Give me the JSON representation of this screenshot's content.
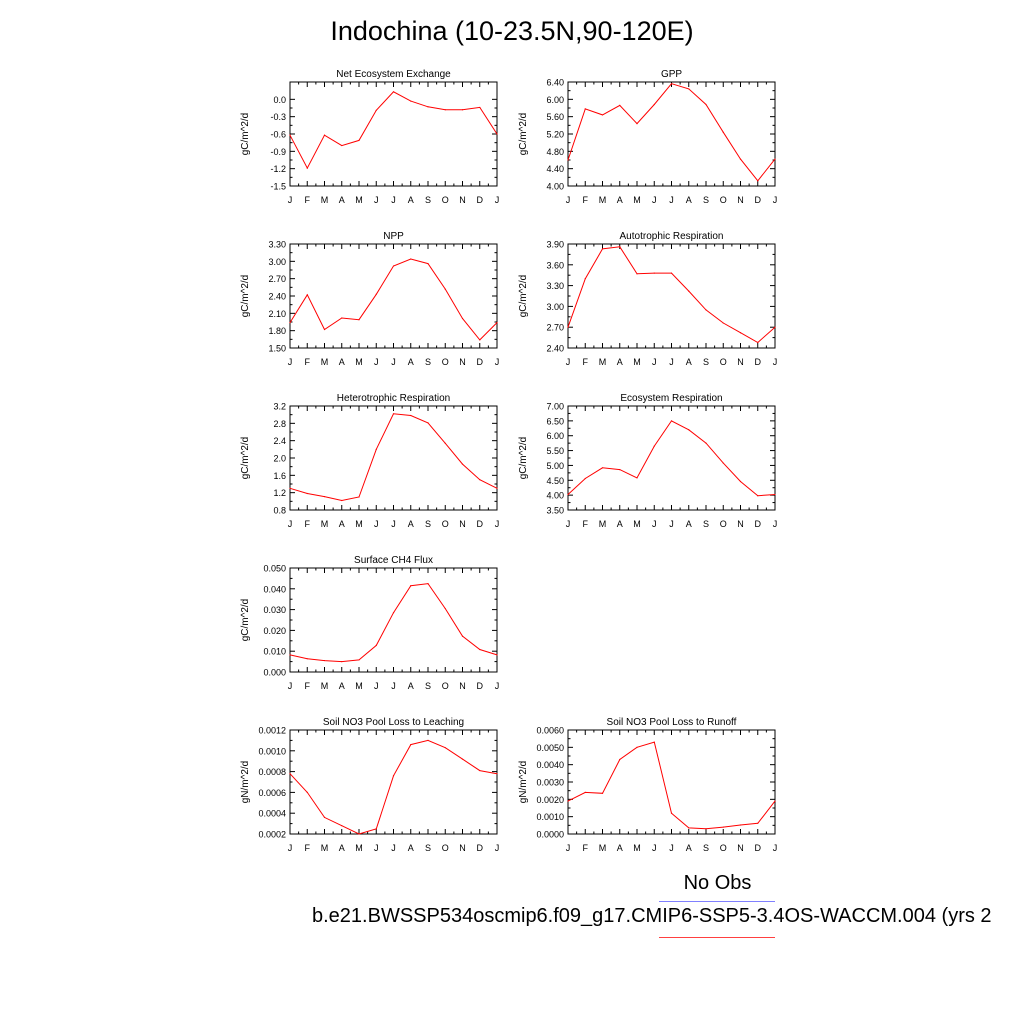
{
  "figure": {
    "title": "Indochina (10-23.5N,90-120E)",
    "legend": [
      {
        "label": "No Obs",
        "color": "#8080ff"
      },
      {
        "label": "b.e21.BWSSP534oscmip6.f09_g17.CMIP6-SSP5-3.4OS-WACCM.004 (yrs 2",
        "color": "#ff4040"
      }
    ],
    "line_color": "#ff0000"
  },
  "chart_data": [
    {
      "type": "line",
      "title": "Net Ecosystem Exchange",
      "ylabel": "gC/m^2/d",
      "ylim": [
        -1.5,
        0.3
      ],
      "yticks": [
        -1.5,
        -1.2,
        -0.9,
        -0.6,
        -0.3,
        0.0
      ],
      "ytick_labels": [
        "-1.5",
        "-1.2",
        "-0.9",
        "-0.6",
        "-0.3",
        "0.0"
      ],
      "ymax_label": "",
      "categories": [
        "J",
        "F",
        "M",
        "A",
        "M",
        "J",
        "J",
        "A",
        "S",
        "O",
        "N",
        "D",
        "J"
      ],
      "values": [
        -0.62,
        -1.19,
        -0.62,
        -0.8,
        -0.71,
        -0.19,
        0.13,
        -0.03,
        -0.13,
        -0.18,
        -0.18,
        -0.14,
        -0.6
      ]
    },
    {
      "type": "line",
      "title": "GPP",
      "ylabel": "gC/m^2/d",
      "ylim": [
        4.0,
        6.4
      ],
      "yticks": [
        4.0,
        4.4,
        4.8,
        5.2,
        5.6,
        6.0,
        6.4
      ],
      "ytick_labels": [
        "4.00",
        "4.40",
        "4.80",
        "5.20",
        "5.60",
        "6.00",
        "6.40"
      ],
      "ymax_label": "",
      "categories": [
        "J",
        "F",
        "M",
        "A",
        "M",
        "J",
        "J",
        "A",
        "S",
        "O",
        "N",
        "D",
        "J"
      ],
      "values": [
        4.6,
        5.78,
        5.64,
        5.86,
        5.44,
        5.88,
        6.36,
        6.24,
        5.88,
        5.24,
        4.62,
        4.12,
        4.62
      ]
    },
    {
      "type": "line",
      "title": "NPP",
      "ylabel": "gC/m^2/d",
      "ylim": [
        1.5,
        3.3
      ],
      "yticks": [
        1.5,
        1.8,
        2.1,
        2.4,
        2.7,
        3.0,
        3.3
      ],
      "ytick_labels": [
        "1.50",
        "1.80",
        "2.10",
        "2.40",
        "2.70",
        "3.00",
        "3.30"
      ],
      "ymax_label": "",
      "categories": [
        "J",
        "F",
        "M",
        "A",
        "M",
        "J",
        "J",
        "A",
        "S",
        "O",
        "N",
        "D",
        "J"
      ],
      "values": [
        1.94,
        2.42,
        1.82,
        2.02,
        1.99,
        2.43,
        2.92,
        3.04,
        2.96,
        2.52,
        2.01,
        1.64,
        1.94
      ]
    },
    {
      "type": "line",
      "title": "Autotrophic Respiration",
      "ylabel": "gC/m^2/d",
      "ylim": [
        2.4,
        3.9
      ],
      "yticks": [
        2.4,
        2.7,
        3.0,
        3.3,
        3.6,
        3.9
      ],
      "ytick_labels": [
        "2.40",
        "2.70",
        "3.00",
        "3.30",
        "3.60",
        "3.90"
      ],
      "ymax_label": "",
      "categories": [
        "J",
        "F",
        "M",
        "A",
        "M",
        "J",
        "J",
        "A",
        "S",
        "O",
        "N",
        "D",
        "J"
      ],
      "values": [
        2.7,
        3.4,
        3.83,
        3.86,
        3.47,
        3.48,
        3.48,
        3.22,
        2.95,
        2.76,
        2.62,
        2.48,
        2.7
      ]
    },
    {
      "type": "line",
      "title": "Heterotrophic Respiration",
      "ylabel": "gC/m^2/d",
      "ylim": [
        0.8,
        3.2
      ],
      "yticks": [
        0.8,
        1.2,
        1.6,
        2.0,
        2.4,
        2.8,
        3.2
      ],
      "ytick_labels": [
        "0.8",
        "1.2",
        "1.6",
        "2.0",
        "2.4",
        "2.8",
        "3.2"
      ],
      "ymax_label": "",
      "categories": [
        "J",
        "F",
        "M",
        "A",
        "M",
        "J",
        "J",
        "A",
        "S",
        "O",
        "N",
        "D",
        "J"
      ],
      "values": [
        1.3,
        1.18,
        1.11,
        1.02,
        1.1,
        2.2,
        3.02,
        2.98,
        2.81,
        2.34,
        1.86,
        1.5,
        1.3
      ]
    },
    {
      "type": "line",
      "title": "Ecosystem Respiration",
      "ylabel": "gC/m^2/d",
      "ylim": [
        3.5,
        7.0
      ],
      "yticks": [
        3.5,
        4.0,
        4.5,
        5.0,
        5.5,
        6.0,
        6.5,
        7.0
      ],
      "ytick_labels": [
        "3.50",
        "4.00",
        "4.50",
        "5.00",
        "5.50",
        "6.00",
        "6.50",
        "7.00"
      ],
      "ymax_label": "",
      "categories": [
        "J",
        "F",
        "M",
        "A",
        "M",
        "J",
        "J",
        "A",
        "S",
        "O",
        "N",
        "D",
        "J"
      ],
      "values": [
        4.02,
        4.56,
        4.92,
        4.86,
        4.58,
        5.65,
        6.5,
        6.2,
        5.75,
        5.08,
        4.46,
        3.98,
        4.02
      ]
    },
    {
      "type": "line",
      "title": "Surface CH4 Flux",
      "ylabel": "gC/m^2/d",
      "ylim": [
        0.0,
        0.05
      ],
      "yticks": [
        0.0,
        0.01,
        0.02,
        0.03,
        0.04,
        0.05
      ],
      "ytick_labels": [
        "0.000",
        "0.010",
        "0.020",
        "0.030",
        "0.040",
        "0.050"
      ],
      "ymax_label": "",
      "categories": [
        "J",
        "F",
        "M",
        "A",
        "M",
        "J",
        "J",
        "A",
        "S",
        "O",
        "N",
        "D",
        "J"
      ],
      "values": [
        0.0082,
        0.0064,
        0.0055,
        0.005,
        0.0058,
        0.0128,
        0.0285,
        0.0415,
        0.0425,
        0.0305,
        0.0172,
        0.0108,
        0.0082
      ]
    },
    {
      "type": "line",
      "title": "Soil NO3 Pool Loss to Leaching",
      "ylabel": "gN/m^2/d",
      "ylim": [
        0.0002,
        0.0012
      ],
      "yticks": [
        0.0002,
        0.0004,
        0.0006,
        0.0008,
        0.001,
        0.0012
      ],
      "ytick_labels": [
        "0.0002",
        "0.0004",
        "0.0006",
        "0.0008",
        "0.0010",
        "0.0012"
      ],
      "ymax_label": "",
      "categories": [
        "J",
        "F",
        "M",
        "A",
        "M",
        "J",
        "J",
        "A",
        "S",
        "O",
        "N",
        "D",
        "J"
      ],
      "values": [
        0.00078,
        0.0006,
        0.00036,
        0.00028,
        0.0002,
        0.00025,
        0.00076,
        0.00106,
        0.0011,
        0.00103,
        0.00092,
        0.00081,
        0.00078
      ]
    },
    {
      "type": "line",
      "title": "Soil NO3 Pool Loss to Runoff",
      "ylabel": "gN/m^2/d",
      "ylim": [
        0.0,
        0.006
      ],
      "yticks": [
        0.0,
        0.001,
        0.002,
        0.003,
        0.004,
        0.005,
        0.006
      ],
      "ytick_labels": [
        "0.0000",
        "0.0010",
        "0.0020",
        "0.0030",
        "0.0040",
        "0.0050",
        "0.0060"
      ],
      "ymax_label": "",
      "categories": [
        "J",
        "F",
        "M",
        "A",
        "M",
        "J",
        "J",
        "A",
        "S",
        "O",
        "N",
        "D",
        "J"
      ],
      "values": [
        0.0019,
        0.0024,
        0.00235,
        0.0043,
        0.005,
        0.0053,
        0.0012,
        0.00035,
        0.0003,
        0.0004,
        0.00052,
        0.00062,
        0.0019
      ]
    }
  ]
}
